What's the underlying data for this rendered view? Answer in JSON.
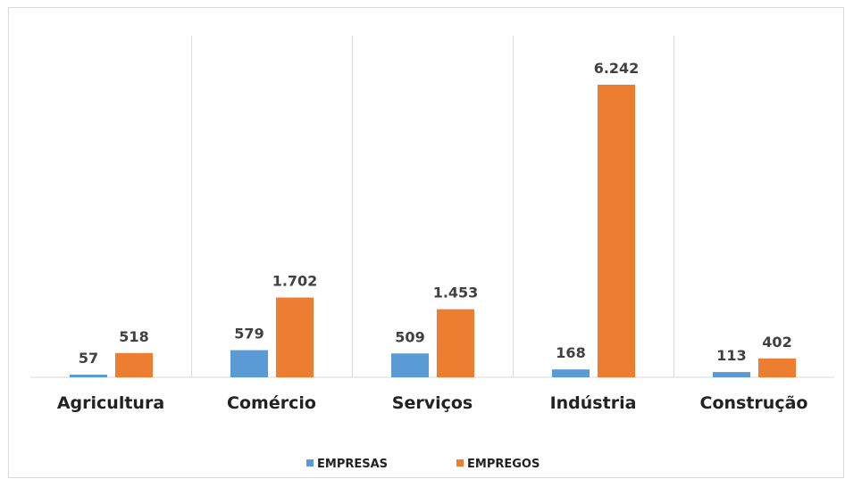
{
  "chart_data": {
    "type": "bar",
    "categories": [
      "Agricultura",
      "Comércio",
      "Serviços",
      "Indústria",
      "Construção"
    ],
    "series": [
      {
        "name": "EMPRESAS",
        "color": "#5b9bd5",
        "values": [
          57,
          579,
          509,
          168,
          113
        ],
        "labels": [
          "57",
          "579",
          "509",
          "168",
          "113"
        ]
      },
      {
        "name": "EMPREGOS",
        "color": "#ed7d31",
        "values": [
          518,
          1702,
          1453,
          6242,
          402
        ],
        "labels": [
          "518",
          "1.702",
          "1.453",
          "6.242",
          "402"
        ]
      }
    ],
    "gridlines": "vertical-category-separators",
    "axis_color": "#d9d9d9",
    "legend_position": "bottom"
  }
}
